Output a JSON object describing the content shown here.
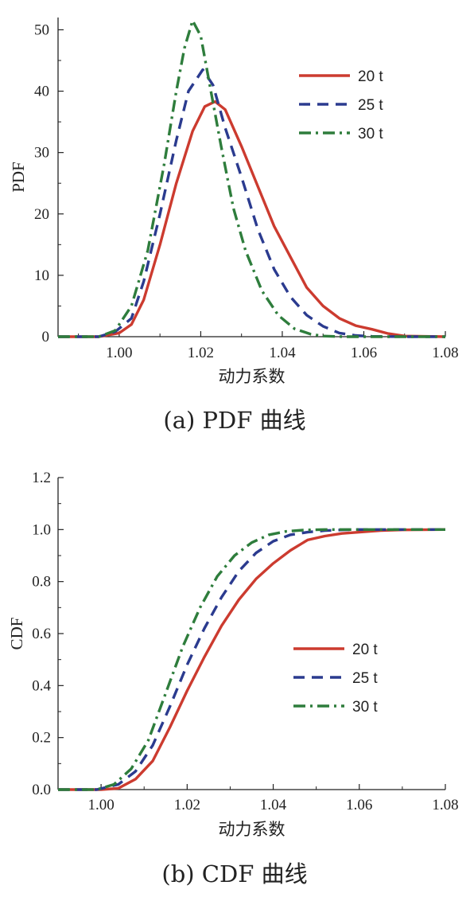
{
  "chart_data": [
    {
      "type": "line",
      "caption": "(a) PDF 曲线",
      "xlabel": "动力系数",
      "ylabel": "PDF",
      "xlim": [
        0.985,
        1.08
      ],
      "ylim": [
        0,
        52
      ],
      "x_ticks": [
        "1.00",
        "1.02",
        "1.04",
        "1.06",
        "1.08"
      ],
      "y_ticks": [
        "0",
        "10",
        "20",
        "30",
        "40",
        "50"
      ],
      "legend_position": "top-right",
      "series": [
        {
          "name": "20 t",
          "color": "#cc3b2f",
          "dash": "solid",
          "x": [
            0.985,
            0.995,
            1.0,
            1.003,
            1.006,
            1.01,
            1.014,
            1.018,
            1.021,
            1.0235,
            1.026,
            1.03,
            1.034,
            1.038,
            1.042,
            1.046,
            1.05,
            1.054,
            1.058,
            1.062,
            1.066,
            1.07,
            1.08
          ],
          "y": [
            0,
            0,
            0.6,
            2,
            6,
            15,
            25,
            33.5,
            37.5,
            38.3,
            37,
            31,
            24.5,
            18,
            13,
            8,
            5,
            3,
            1.8,
            1.2,
            0.5,
            0.1,
            0
          ]
        },
        {
          "name": "25 t",
          "color": "#2b3b8f",
          "dash": "dash",
          "x": [
            0.985,
            0.995,
            0.999,
            1.003,
            1.006,
            1.01,
            1.014,
            1.017,
            1.0205,
            1.023,
            1.026,
            1.03,
            1.034,
            1.038,
            1.042,
            1.046,
            1.05,
            1.054,
            1.058,
            1.062,
            1.07,
            1.08
          ],
          "y": [
            0,
            0,
            0.8,
            3,
            9,
            20,
            32,
            40,
            43.5,
            41,
            34,
            26,
            17.5,
            11,
            6.5,
            3.5,
            1.7,
            0.6,
            0.2,
            0.05,
            0,
            0
          ]
        },
        {
          "name": "30 t",
          "color": "#2e7d3c",
          "dash": "dashdot",
          "x": [
            0.985,
            0.995,
            0.999,
            1.003,
            1.007,
            1.011,
            1.014,
            1.016,
            1.018,
            1.02,
            1.0225,
            1.025,
            1.028,
            1.031,
            1.035,
            1.039,
            1.043,
            1.047,
            1.05,
            1.055,
            1.08
          ],
          "y": [
            0,
            0,
            1,
            5,
            14,
            28,
            40,
            47,
            51.5,
            49,
            40,
            31,
            21,
            14,
            7.5,
            3.5,
            1.3,
            0.4,
            0.1,
            0,
            0
          ]
        }
      ]
    },
    {
      "type": "line",
      "caption": "(b) CDF 曲线",
      "xlabel": "动力系数",
      "ylabel": "CDF",
      "xlim": [
        0.99,
        1.08
      ],
      "ylim": [
        0,
        1.2
      ],
      "x_ticks": [
        "1.00",
        "1.02",
        "1.04",
        "1.06",
        "1.08"
      ],
      "y_ticks": [
        "0.0",
        "0.2",
        "0.4",
        "0.6",
        "0.8",
        "1.0",
        "1.2"
      ],
      "legend_position": "right",
      "series": [
        {
          "name": "20 t",
          "color": "#cc3b2f",
          "dash": "solid",
          "x": [
            0.99,
            1.0,
            1.004,
            1.008,
            1.012,
            1.016,
            1.02,
            1.024,
            1.028,
            1.032,
            1.036,
            1.04,
            1.044,
            1.048,
            1.052,
            1.056,
            1.06,
            1.065,
            1.07,
            1.08
          ],
          "y": [
            0,
            0,
            0.005,
            0.04,
            0.11,
            0.24,
            0.38,
            0.51,
            0.63,
            0.73,
            0.81,
            0.87,
            0.92,
            0.96,
            0.975,
            0.985,
            0.99,
            0.996,
            0.999,
            1.0
          ]
        },
        {
          "name": "25 t",
          "color": "#2b3b8f",
          "dash": "dash",
          "x": [
            0.99,
            0.999,
            1.004,
            1.008,
            1.012,
            1.016,
            1.02,
            1.024,
            1.028,
            1.032,
            1.036,
            1.04,
            1.044,
            1.048,
            1.052,
            1.056,
            1.06,
            1.08
          ],
          "y": [
            0,
            0,
            0.02,
            0.07,
            0.17,
            0.32,
            0.48,
            0.62,
            0.74,
            0.84,
            0.91,
            0.955,
            0.98,
            0.99,
            0.996,
            0.999,
            1.0,
            1.0
          ]
        },
        {
          "name": "30 t",
          "color": "#2e7d3c",
          "dash": "dashdot",
          "x": [
            0.99,
            0.999,
            1.003,
            1.007,
            1.011,
            1.015,
            1.019,
            1.023,
            1.027,
            1.031,
            1.035,
            1.039,
            1.043,
            1.047,
            1.052,
            1.08
          ],
          "y": [
            0,
            0,
            0.02,
            0.08,
            0.19,
            0.37,
            0.55,
            0.7,
            0.82,
            0.9,
            0.95,
            0.98,
            0.993,
            0.998,
            1.0,
            1.0
          ]
        }
      ]
    }
  ]
}
